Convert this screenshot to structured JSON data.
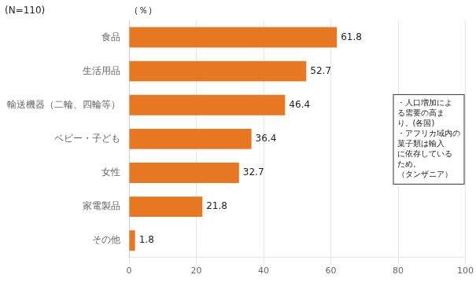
{
  "chart_data": {
    "type": "bar",
    "orientation": "horizontal",
    "categories": [
      "食品",
      "生活用品",
      "輸送機器（二輪、四輪等）",
      "ベビー・子ども",
      "女性",
      "家電製品",
      "その他"
    ],
    "values": [
      61.8,
      52.7,
      46.4,
      36.4,
      32.7,
      21.8,
      1.8
    ],
    "color": "#E87722",
    "xlim": [
      0,
      100
    ],
    "xticks": [
      0,
      20,
      40,
      60,
      80,
      100
    ],
    "x_label": "（％）",
    "annotations": [
      "(N=110)",
      "・人口増加によ\nる需要の高ま\nり。(各国)\n・アフリカ域内の\n菓子類は輸入\nに依存している\nため。\n（タンザニア）"
    ],
    "grid": true,
    "data_labels": true
  }
}
